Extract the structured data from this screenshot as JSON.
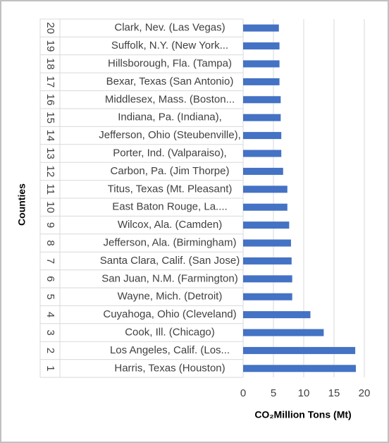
{
  "chart_data": {
    "type": "barh",
    "x_label": "CO₂Million Tons (Mt)",
    "y_label": "Counties",
    "ranks": [
      "1",
      "2",
      "3",
      "4",
      "5",
      "6",
      "7",
      "8",
      "9",
      "10",
      "11",
      "12",
      "13",
      "14",
      "15",
      "16",
      "17",
      "18",
      "19",
      "20"
    ],
    "categories": [
      "Harris, Texas (Houston)",
      "Los Angeles, Calif. (Los...",
      "Cook, Ill. (Chicago)",
      "Cuyahoga, Ohio (Cleveland)",
      "Wayne, Mich. (Detroit)",
      "San Juan, N.M. (Farmington)",
      "Santa Clara, Calif. (San Jose)",
      "Jefferson, Ala. (Birmingham)",
      "Wilcox, Ala. (Camden)",
      "East Baton Rouge, La....",
      "Titus, Texas (Mt. Pleasant)",
      "Carbon, Pa. (Jim Thorpe)",
      "Porter, Ind. (Valparaiso),",
      "Jefferson, Ohio (Steubenville),",
      "Indiana, Pa. (Indiana),",
      "Middlesex, Mass. (Boston...",
      "Bexar, Texas (San Antonio)",
      "Hillsborough, Fla. (Tampa)",
      "Suffolk, N.Y. (New York...",
      "Clark, Nev. (Las Vegas)"
    ],
    "values": [
      18.6,
      18.5,
      13.3,
      11.1,
      8.1,
      8.1,
      8.0,
      7.9,
      7.6,
      7.3,
      7.3,
      6.6,
      6.3,
      6.3,
      6.2,
      6.2,
      6.0,
      6.0,
      6.0,
      5.9
    ],
    "color": "#4472c4",
    "xlim": [
      0,
      20
    ],
    "xticks": [
      0,
      5,
      10,
      15,
      20
    ],
    "grid": true
  }
}
